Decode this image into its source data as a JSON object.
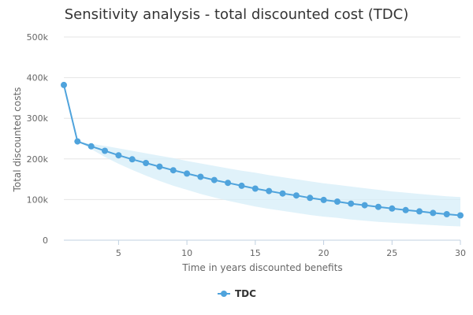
{
  "chart_data": {
    "type": "line",
    "title": "Sensitivity analysis - total discounted cost (TDC)",
    "xlabel": "Time in years discounted benefits",
    "ylabel": "Total discounted costs",
    "xlim": [
      1,
      30
    ],
    "ylim": [
      0,
      500000
    ],
    "x_ticks": [
      5,
      10,
      15,
      20,
      25,
      30
    ],
    "x_tick_labels": [
      "5",
      "10",
      "15",
      "20",
      "25",
      "30"
    ],
    "y_ticks": [
      0,
      100000,
      200000,
      300000,
      400000,
      500000
    ],
    "y_tick_labels": [
      "0",
      "100k",
      "200k",
      "300k",
      "400k",
      "500k"
    ],
    "grid": "horizontal",
    "legend_position": "bottom",
    "colors": {
      "line": "#4fa3dc",
      "band": "#d6eef8",
      "grid": "#e6e6e6",
      "axis": "#c0d0e0"
    },
    "series": [
      {
        "name": "TDC",
        "x": [
          1,
          2,
          3,
          4,
          5,
          6,
          7,
          8,
          9,
          10,
          11,
          12,
          13,
          14,
          15,
          16,
          17,
          18,
          19,
          20,
          21,
          22,
          23,
          24,
          25,
          26,
          27,
          28,
          29,
          30
        ],
        "values": [
          382000,
          243000,
          231000,
          220000,
          209000,
          199000,
          190000,
          181000,
          172000,
          164000,
          156000,
          148000,
          141000,
          134000,
          127000,
          121000,
          115000,
          110000,
          104000,
          99000,
          95000,
          90000,
          86000,
          82000,
          78000,
          74000,
          71000,
          67000,
          64000,
          61000
        ]
      }
    ],
    "band": {
      "x": [
        2,
        3,
        4,
        5,
        6,
        7,
        8,
        9,
        10,
        11,
        12,
        13,
        14,
        15,
        16,
        17,
        18,
        19,
        20,
        21,
        22,
        23,
        24,
        25,
        26,
        27,
        28,
        29,
        30
      ],
      "low": [
        243000,
        224000,
        205000,
        188000,
        173000,
        159000,
        146000,
        134000,
        124000,
        114000,
        105000,
        97000,
        90000,
        83000,
        77000,
        72000,
        67000,
        62000,
        58000,
        55000,
        51000,
        48000,
        45000,
        43000,
        41000,
        39000,
        37000,
        35000,
        34000
      ],
      "high": [
        243000,
        237000,
        232000,
        226000,
        220000,
        214000,
        208000,
        202000,
        195000,
        189000,
        183000,
        177000,
        171000,
        166000,
        160000,
        155000,
        150000,
        145000,
        140000,
        136000,
        132000,
        128000,
        124000,
        120000,
        117000,
        114000,
        111000,
        108000,
        106000
      ]
    }
  }
}
